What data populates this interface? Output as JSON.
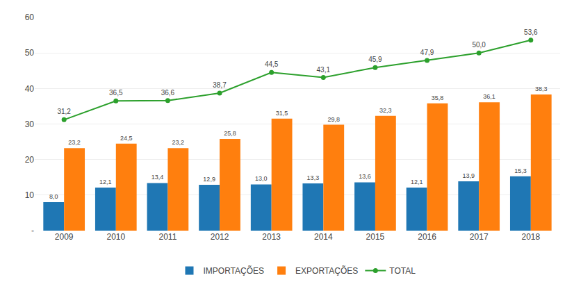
{
  "chart_data": {
    "type": "bar",
    "categories": [
      "2009",
      "2010",
      "2011",
      "2012",
      "2013",
      "2014",
      "2015",
      "2016",
      "2017",
      "2018"
    ],
    "series": [
      {
        "name": "IMPORTAÇÕES",
        "type": "bar",
        "values": [
          8.0,
          12.1,
          13.4,
          12.9,
          13.0,
          13.3,
          13.6,
          12.1,
          13.9,
          15.3
        ],
        "value_labels": [
          "8,0",
          "12,1",
          "13,4",
          "12,9",
          "13,0",
          "13,3",
          "13,6",
          "12,1",
          "13,9",
          "15,3"
        ]
      },
      {
        "name": "EXPORTAÇÕES",
        "type": "bar",
        "values": [
          23.2,
          24.5,
          23.2,
          25.8,
          31.5,
          29.8,
          32.3,
          35.8,
          36.1,
          38.3
        ],
        "value_labels": [
          "23,2",
          "24,5",
          "23,2",
          "25,8",
          "31,5",
          "29,8",
          "32,3",
          "35,8",
          "36,1",
          "38,3"
        ]
      },
      {
        "name": "TOTAL",
        "type": "line",
        "marker": "circle",
        "values": [
          31.2,
          36.5,
          36.6,
          38.7,
          44.5,
          43.1,
          45.9,
          47.9,
          50.0,
          53.6
        ],
        "value_labels": [
          "31,2",
          "36,5",
          "36,6",
          "38,7",
          "44,5",
          "43,1",
          "45,9",
          "47,9",
          "50,0",
          "53,6"
        ]
      }
    ],
    "ylim": [
      0,
      60
    ],
    "yticks": [
      {
        "value": 0,
        "label": "-"
      },
      10,
      20,
      30,
      40,
      50,
      60
    ],
    "grid": true,
    "legend": "bottom",
    "data_labels": true
  }
}
